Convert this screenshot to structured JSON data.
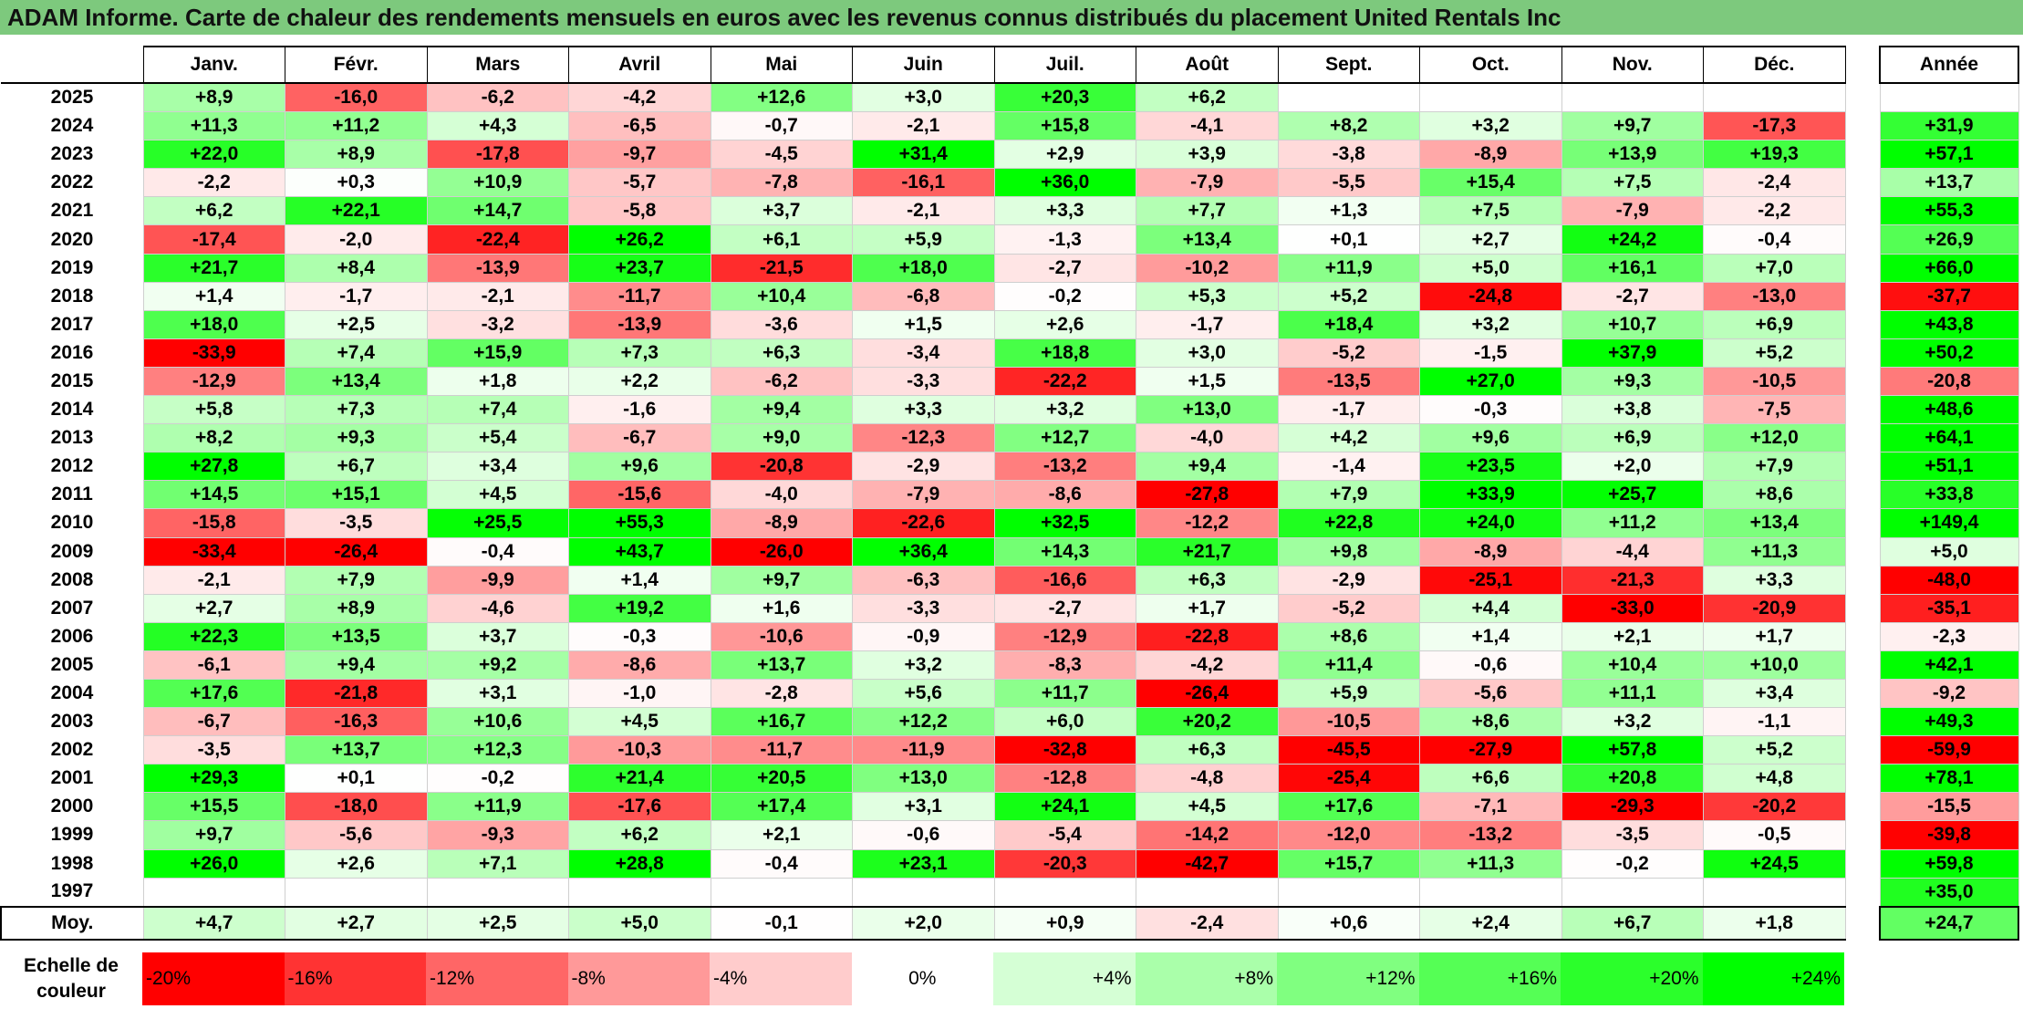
{
  "title": "ADAM Informe. Carte de chaleur des rendements mensuels en euros avec les revenus connus distribués du placement United Rentals Inc",
  "annual_header": "Année",
  "avg_label": "Moy.",
  "scale_label": "Echelle de couleur",
  "scale_ticks": [
    "-20%",
    "-16%",
    "-12%",
    "-8%",
    "-4%",
    "0%",
    "+4%",
    "+8%",
    "+12%",
    "+16%",
    "+20%",
    "+24%"
  ],
  "colors": {
    "negative": "#ff0000",
    "neutral": "#ffffff",
    "positive": "#00ff00",
    "title_bg": "#7dc97d"
  },
  "chart_data": {
    "type": "heatmap",
    "title": "ADAM Informe. Carte de chaleur des rendements mensuels en euros avec les revenus connus distribués du placement United Rentals Inc",
    "months": [
      "Janv.",
      "Févr.",
      "Mars",
      "Avril",
      "Mai",
      "Juin",
      "Juil.",
      "Août",
      "Sept.",
      "Oct.",
      "Nov.",
      "Déc."
    ],
    "rows": [
      {
        "year": "2025",
        "values": [
          8.9,
          -16.0,
          -6.2,
          -4.2,
          12.6,
          3.0,
          20.3,
          6.2,
          null,
          null,
          null,
          null
        ],
        "annual": null
      },
      {
        "year": "2024",
        "values": [
          11.3,
          11.2,
          4.3,
          -6.5,
          -0.7,
          -2.1,
          15.8,
          -4.1,
          8.2,
          3.2,
          9.7,
          -17.3
        ],
        "annual": 31.9
      },
      {
        "year": "2023",
        "values": [
          22.0,
          8.9,
          -17.8,
          -9.7,
          -4.5,
          31.4,
          2.9,
          3.9,
          -3.8,
          -8.9,
          13.9,
          19.3
        ],
        "annual": 57.1
      },
      {
        "year": "2022",
        "values": [
          -2.2,
          0.3,
          10.9,
          -5.7,
          -7.8,
          -16.1,
          36.0,
          -7.9,
          -5.5,
          15.4,
          7.5,
          -2.4
        ],
        "annual": 13.7
      },
      {
        "year": "2021",
        "values": [
          6.2,
          22.1,
          14.7,
          -5.8,
          3.7,
          -2.1,
          3.3,
          7.7,
          1.3,
          7.5,
          -7.9,
          -2.2
        ],
        "annual": 55.3
      },
      {
        "year": "2020",
        "values": [
          -17.4,
          -2.0,
          -22.4,
          26.2,
          6.1,
          5.9,
          -1.3,
          13.4,
          0.1,
          2.7,
          24.2,
          -0.4
        ],
        "annual": 26.9
      },
      {
        "year": "2019",
        "values": [
          21.7,
          8.4,
          -13.9,
          23.7,
          -21.5,
          18.0,
          -2.7,
          -10.2,
          11.9,
          5.0,
          16.1,
          7.0
        ],
        "annual": 66.0
      },
      {
        "year": "2018",
        "values": [
          1.4,
          -1.7,
          -2.1,
          -11.7,
          10.4,
          -6.8,
          -0.2,
          5.3,
          5.2,
          -24.8,
          -2.7,
          -13.0
        ],
        "annual": -37.7
      },
      {
        "year": "2017",
        "values": [
          18.0,
          2.5,
          -3.2,
          -13.9,
          -3.6,
          1.5,
          2.6,
          -1.7,
          18.4,
          3.2,
          10.7,
          6.9
        ],
        "annual": 43.8
      },
      {
        "year": "2016",
        "values": [
          -33.9,
          7.4,
          15.9,
          7.3,
          6.3,
          -3.4,
          18.8,
          3.0,
          -5.2,
          -1.5,
          37.9,
          5.2
        ],
        "annual": 50.2
      },
      {
        "year": "2015",
        "values": [
          -12.9,
          13.4,
          1.8,
          2.2,
          -6.2,
          -3.3,
          -22.2,
          1.5,
          -13.5,
          27.0,
          9.3,
          -10.5
        ],
        "annual": -20.8
      },
      {
        "year": "2014",
        "values": [
          5.8,
          7.3,
          7.4,
          -1.6,
          9.4,
          3.3,
          3.2,
          13.0,
          -1.7,
          -0.3,
          3.8,
          -7.5
        ],
        "annual": 48.6
      },
      {
        "year": "2013",
        "values": [
          8.2,
          9.3,
          5.4,
          -6.7,
          9.0,
          -12.3,
          12.7,
          -4.0,
          4.2,
          9.6,
          6.9,
          12.0
        ],
        "annual": 64.1
      },
      {
        "year": "2012",
        "values": [
          27.8,
          6.7,
          3.4,
          9.6,
          -20.8,
          -2.9,
          -13.2,
          9.4,
          -1.4,
          23.5,
          2.0,
          7.9
        ],
        "annual": 51.1
      },
      {
        "year": "2011",
        "values": [
          14.5,
          15.1,
          4.5,
          -15.6,
          -4.0,
          -7.9,
          -8.6,
          -27.8,
          7.9,
          33.9,
          25.7,
          8.6
        ],
        "annual": 33.8
      },
      {
        "year": "2010",
        "values": [
          -15.8,
          -3.5,
          25.5,
          55.3,
          -8.9,
          -22.6,
          32.5,
          -12.2,
          22.8,
          24.0,
          11.2,
          13.4
        ],
        "annual": 149.4
      },
      {
        "year": "2009",
        "values": [
          -33.4,
          -26.4,
          -0.4,
          43.7,
          -26.0,
          36.4,
          14.3,
          21.7,
          9.8,
          -8.9,
          -4.4,
          11.3
        ],
        "annual": 5.0
      },
      {
        "year": "2008",
        "values": [
          -2.1,
          7.9,
          -9.9,
          1.4,
          9.7,
          -6.3,
          -16.6,
          6.3,
          -2.9,
          -25.1,
          -21.3,
          3.3
        ],
        "annual": -48.0
      },
      {
        "year": "2007",
        "values": [
          2.7,
          8.9,
          -4.6,
          19.2,
          1.6,
          -3.3,
          -2.7,
          1.7,
          -5.2,
          4.4,
          -33.0,
          -20.9
        ],
        "annual": -35.1
      },
      {
        "year": "2006",
        "values": [
          22.3,
          13.5,
          3.7,
          -0.3,
          -10.6,
          -0.9,
          -12.9,
          -22.8,
          8.6,
          1.4,
          2.1,
          1.7
        ],
        "annual": -2.3
      },
      {
        "year": "2005",
        "values": [
          -6.1,
          9.4,
          9.2,
          -8.6,
          13.7,
          3.2,
          -8.3,
          -4.2,
          11.4,
          -0.6,
          10.4,
          10.0
        ],
        "annual": 42.1
      },
      {
        "year": "2004",
        "values": [
          17.6,
          -21.8,
          3.1,
          -1.0,
          -2.8,
          5.6,
          11.7,
          -26.4,
          5.9,
          -5.6,
          11.1,
          3.4
        ],
        "annual": -9.2
      },
      {
        "year": "2003",
        "values": [
          -6.7,
          -16.3,
          10.6,
          4.5,
          16.7,
          12.2,
          6.0,
          20.2,
          -10.5,
          8.6,
          3.2,
          -1.1
        ],
        "annual": 49.3
      },
      {
        "year": "2002",
        "values": [
          -3.5,
          13.7,
          12.3,
          -10.3,
          -11.7,
          -11.9,
          -32.8,
          6.3,
          -45.5,
          -27.9,
          57.8,
          5.2
        ],
        "annual": -59.9
      },
      {
        "year": "2001",
        "values": [
          29.3,
          0.1,
          -0.2,
          21.4,
          20.5,
          13.0,
          -12.8,
          -4.8,
          -25.4,
          6.6,
          20.8,
          4.8
        ],
        "annual": 78.1
      },
      {
        "year": "2000",
        "values": [
          15.5,
          -18.0,
          11.9,
          -17.6,
          17.4,
          3.1,
          24.1,
          4.5,
          17.6,
          -7.1,
          -29.3,
          -20.2
        ],
        "annual": -15.5
      },
      {
        "year": "1999",
        "values": [
          9.7,
          -5.6,
          -9.3,
          6.2,
          2.1,
          -0.6,
          -5.4,
          -14.2,
          -12.0,
          -13.2,
          -3.5,
          -0.5
        ],
        "annual": -39.8
      },
      {
        "year": "1998",
        "values": [
          26.0,
          2.6,
          7.1,
          28.8,
          -0.4,
          23.1,
          -20.3,
          -42.7,
          15.7,
          11.3,
          -0.2,
          24.5
        ],
        "annual": 59.8
      },
      {
        "year": "1997",
        "values": [
          null,
          null,
          null,
          null,
          null,
          null,
          null,
          null,
          null,
          null,
          null,
          null
        ],
        "annual": 35.0
      }
    ],
    "averages": [
      4.7,
      2.7,
      2.5,
      5.0,
      -0.1,
      2.0,
      0.9,
      -2.4,
      0.6,
      2.4,
      6.7,
      1.8
    ],
    "annual_average": 24.7,
    "color_scale": {
      "min": -20,
      "max": 24,
      "step": 4
    }
  }
}
